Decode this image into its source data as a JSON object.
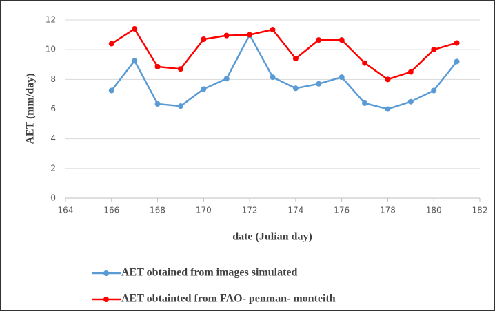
{
  "chart_data": {
    "type": "line",
    "x_label": "date (Julian day)",
    "y_label": "AET (mm/day)",
    "x": [
      166,
      167,
      168,
      169,
      170,
      171,
      172,
      173,
      174,
      175,
      176,
      177,
      178,
      179,
      180,
      181
    ],
    "series": [
      {
        "name": "AET obtained from images simulated",
        "color": "#5b9bd5",
        "values": [
          7.25,
          9.25,
          6.35,
          6.2,
          7.35,
          8.05,
          11.0,
          8.15,
          7.4,
          7.7,
          8.15,
          6.4,
          6.0,
          6.5,
          7.25,
          9.2
        ]
      },
      {
        "name": "AET obtainted from FAO- penman- monteith",
        "color": "#ff0000",
        "values": [
          10.4,
          11.4,
          8.85,
          8.7,
          10.7,
          10.95,
          11.0,
          11.35,
          9.4,
          10.65,
          10.65,
          9.1,
          8.0,
          8.5,
          10.0,
          10.45
        ]
      }
    ],
    "xlim": [
      164,
      182
    ],
    "xticks": [
      164,
      166,
      168,
      170,
      172,
      174,
      176,
      178,
      180,
      182
    ],
    "ylim": [
      0,
      12
    ],
    "yticks": [
      0,
      2,
      4,
      6,
      8,
      10,
      12
    ],
    "grid": true,
    "legend": "bottom-left"
  }
}
